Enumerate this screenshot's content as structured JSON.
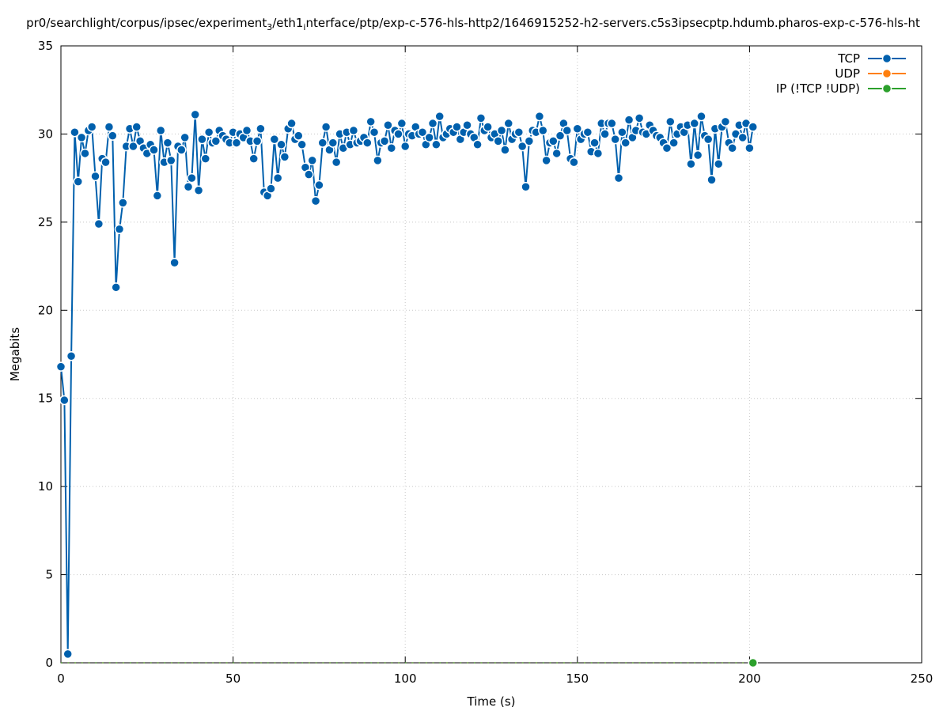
{
  "chart_data": {
    "type": "line",
    "title_parts": [
      "pr0/searchlight/corpus/ipsec/experiment",
      "3",
      "/eth1",
      "i",
      "nterface/ptp/exp-c-576-hls-http2/1646915252-h2-servers.c5s3ipsecptp.hdumb.pharos-exp-c-576-hls-ht"
    ],
    "x_label": "Time (s)",
    "y_label": "Megabits",
    "xlim": [
      0,
      250
    ],
    "xticks": [
      0,
      50,
      100,
      150,
      200,
      250
    ],
    "ylim": [
      0,
      35
    ],
    "yticks": [
      0,
      5,
      10,
      15,
      20,
      25,
      30,
      35
    ],
    "grid": true,
    "legend": "top-right",
    "x": [
      0,
      1,
      2,
      3,
      4,
      5,
      6,
      7,
      8,
      9,
      10,
      11,
      12,
      13,
      14,
      15,
      16,
      17,
      18,
      19,
      20,
      21,
      22,
      23,
      24,
      25,
      26,
      27,
      28,
      29,
      30,
      31,
      32,
      33,
      34,
      35,
      36,
      37,
      38,
      39,
      40,
      41,
      42,
      43,
      44,
      45,
      46,
      47,
      48,
      49,
      50,
      51,
      52,
      53,
      54,
      55,
      56,
      57,
      58,
      59,
      60,
      61,
      62,
      63,
      64,
      65,
      66,
      67,
      68,
      69,
      70,
      71,
      72,
      73,
      74,
      75,
      76,
      77,
      78,
      79,
      80,
      81,
      82,
      83,
      84,
      85,
      86,
      87,
      88,
      89,
      90,
      91,
      92,
      93,
      94,
      95,
      96,
      97,
      98,
      99,
      100,
      101,
      102,
      103,
      104,
      105,
      106,
      107,
      108,
      109,
      110,
      111,
      112,
      113,
      114,
      115,
      116,
      117,
      118,
      119,
      120,
      121,
      122,
      123,
      124,
      125,
      126,
      127,
      128,
      129,
      130,
      131,
      132,
      133,
      134,
      135,
      136,
      137,
      138,
      139,
      140,
      141,
      142,
      143,
      144,
      145,
      146,
      147,
      148,
      149,
      150,
      151,
      152,
      153,
      154,
      155,
      156,
      157,
      158,
      159,
      160,
      161,
      162,
      163,
      164,
      165,
      166,
      167,
      168,
      169,
      170,
      171,
      172,
      173,
      174,
      175,
      176,
      177,
      178,
      179,
      180,
      181,
      182,
      183,
      184,
      185,
      186,
      187,
      188,
      189,
      190,
      191,
      192,
      193,
      194,
      195,
      196,
      197,
      198,
      199,
      200,
      201
    ],
    "series": [
      {
        "name": "TCP",
        "color": "#0060ad",
        "values": [
          16.8,
          14.9,
          0.5,
          17.4,
          30.1,
          27.3,
          29.8,
          28.9,
          30.2,
          30.4,
          27.6,
          24.9,
          28.6,
          28.4,
          30.4,
          29.9,
          21.3,
          24.6,
          26.1,
          29.3,
          30.3,
          29.3,
          30.4,
          29.6,
          29.2,
          28.9,
          29.4,
          29.1,
          26.5,
          30.2,
          28.4,
          29.5,
          28.5,
          22.7,
          29.3,
          29.1,
          29.8,
          27.0,
          27.5,
          31.1,
          26.8,
          29.7,
          28.6,
          30.1,
          29.5,
          29.6,
          30.2,
          29.9,
          29.7,
          29.5,
          30.1,
          29.5,
          30.0,
          29.8,
          30.2,
          29.6,
          28.6,
          29.6,
          30.3,
          26.7,
          26.5,
          26.9,
          29.7,
          27.5,
          29.4,
          28.7,
          30.3,
          30.6,
          29.7,
          29.9,
          29.4,
          28.1,
          27.7,
          28.5,
          26.2,
          27.1,
          29.5,
          30.4,
          29.1,
          29.5,
          28.4,
          30.0,
          29.2,
          30.1,
          29.4,
          30.2,
          29.5,
          29.6,
          29.8,
          29.5,
          30.7,
          30.1,
          28.5,
          29.5,
          29.6,
          30.5,
          29.2,
          30.2,
          30.0,
          30.6,
          29.3,
          30.0,
          29.9,
          30.4,
          30.0,
          30.1,
          29.4,
          29.8,
          30.6,
          29.4,
          31.0,
          29.8,
          30.0,
          30.3,
          30.1,
          30.4,
          29.7,
          30.1,
          30.5,
          30.0,
          29.8,
          29.4,
          30.9,
          30.2,
          30.4,
          29.8,
          30.0,
          29.6,
          30.2,
          29.1,
          30.6,
          29.7,
          30.0,
          30.1,
          29.3,
          27.0,
          29.6,
          30.2,
          30.1,
          31.0,
          30.2,
          28.5,
          29.5,
          29.6,
          28.9,
          29.9,
          30.6,
          30.2,
          28.6,
          28.4,
          30.3,
          29.7,
          30.0,
          30.1,
          29.0,
          29.5,
          28.9,
          30.6,
          30.0,
          30.6,
          30.6,
          29.7,
          27.5,
          30.1,
          29.5,
          30.8,
          29.8,
          30.2,
          30.9,
          30.1,
          30.0,
          30.5,
          30.2,
          29.9,
          29.8,
          29.5,
          29.2,
          30.7,
          29.5,
          30.0,
          30.4,
          30.1,
          30.5,
          28.3,
          30.6,
          28.8,
          31.0,
          29.9,
          29.7,
          27.4,
          30.3,
          28.3,
          30.4,
          30.7,
          29.5,
          29.2,
          30.0,
          30.5,
          29.8,
          30.6,
          29.2,
          30.4
        ]
      },
      {
        "name": "UDP",
        "color": "#ff7f0e",
        "values": [
          0,
          0,
          0,
          0,
          0,
          0,
          0,
          0,
          0,
          0,
          0,
          0,
          0,
          0,
          0,
          0,
          0,
          0,
          0,
          0,
          0,
          0,
          0,
          0,
          0,
          0,
          0,
          0,
          0,
          0,
          0,
          0,
          0,
          0,
          0,
          0,
          0,
          0,
          0,
          0,
          0,
          0,
          0,
          0,
          0,
          0,
          0,
          0,
          0,
          0,
          0,
          0,
          0,
          0,
          0,
          0,
          0,
          0,
          0,
          0,
          0,
          0,
          0,
          0,
          0,
          0,
          0,
          0,
          0,
          0,
          0,
          0,
          0,
          0,
          0,
          0,
          0,
          0,
          0,
          0,
          0,
          0,
          0,
          0,
          0,
          0,
          0,
          0,
          0,
          0,
          0,
          0,
          0,
          0,
          0,
          0,
          0,
          0,
          0,
          0,
          0,
          0,
          0,
          0,
          0,
          0,
          0,
          0,
          0,
          0,
          0,
          0,
          0,
          0,
          0,
          0,
          0,
          0,
          0,
          0,
          0,
          0,
          0,
          0,
          0,
          0,
          0,
          0,
          0,
          0,
          0,
          0,
          0,
          0,
          0,
          0,
          0,
          0,
          0,
          0,
          0,
          0,
          0,
          0,
          0,
          0,
          0,
          0,
          0,
          0,
          0,
          0,
          0,
          0,
          0,
          0,
          0,
          0,
          0,
          0,
          0,
          0,
          0,
          0,
          0,
          0,
          0,
          0,
          0,
          0,
          0,
          0,
          0,
          0,
          0,
          0,
          0,
          0,
          0,
          0,
          0,
          0,
          0,
          0,
          0,
          0,
          0,
          0,
          0,
          0,
          0,
          0,
          0,
          0,
          0,
          0,
          0,
          0,
          0,
          0,
          0,
          0
        ]
      },
      {
        "name": "IP (!TCP  !UDP)",
        "color": "#2ca02c",
        "values": [
          0,
          0,
          0,
          0,
          0,
          0,
          0,
          0,
          0,
          0,
          0,
          0,
          0,
          0,
          0,
          0,
          0,
          0,
          0,
          0,
          0,
          0,
          0,
          0,
          0,
          0,
          0,
          0,
          0,
          0,
          0,
          0,
          0,
          0,
          0,
          0,
          0,
          0,
          0,
          0,
          0,
          0,
          0,
          0,
          0,
          0,
          0,
          0,
          0,
          0,
          0,
          0,
          0,
          0,
          0,
          0,
          0,
          0,
          0,
          0,
          0,
          0,
          0,
          0,
          0,
          0,
          0,
          0,
          0,
          0,
          0,
          0,
          0,
          0,
          0,
          0,
          0,
          0,
          0,
          0,
          0,
          0,
          0,
          0,
          0,
          0,
          0,
          0,
          0,
          0,
          0,
          0,
          0,
          0,
          0,
          0,
          0,
          0,
          0,
          0,
          0,
          0,
          0,
          0,
          0,
          0,
          0,
          0,
          0,
          0,
          0,
          0,
          0,
          0,
          0,
          0,
          0,
          0,
          0,
          0,
          0,
          0,
          0,
          0,
          0,
          0,
          0,
          0,
          0,
          0,
          0,
          0,
          0,
          0,
          0,
          0,
          0,
          0,
          0,
          0,
          0,
          0,
          0,
          0,
          0,
          0,
          0,
          0,
          0,
          0,
          0,
          0,
          0,
          0,
          0,
          0,
          0,
          0,
          0,
          0,
          0,
          0,
          0,
          0,
          0,
          0,
          0,
          0,
          0,
          0,
          0,
          0,
          0,
          0,
          0,
          0,
          0,
          0,
          0,
          0,
          0,
          0,
          0,
          0,
          0,
          0,
          0,
          0,
          0,
          0,
          0,
          0,
          0,
          0,
          0,
          0,
          0,
          0,
          0,
          0,
          0,
          0
        ]
      }
    ]
  }
}
